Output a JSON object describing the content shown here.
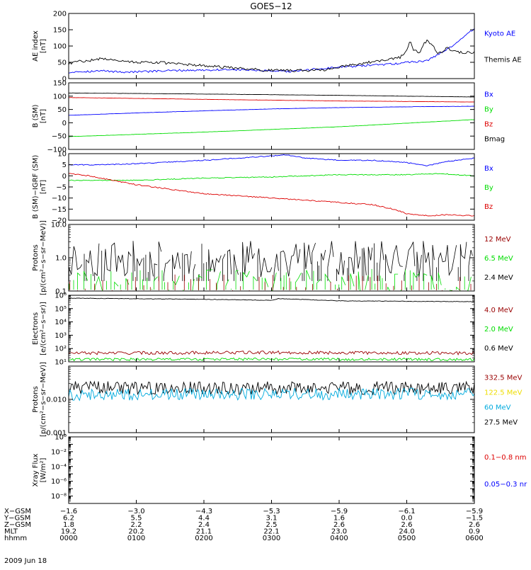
{
  "title": "GOES−12",
  "date_label": "2009 Jun 18",
  "colors": {
    "black": "#000000",
    "blue": "#0000ff",
    "red": "#dd0000",
    "green": "#00dd00",
    "darkred": "#990000",
    "yellow": "#eedd00",
    "cyan": "#00aadd"
  },
  "chart_data": [
    {
      "id": "ae",
      "type": "line",
      "ylabel_lines": [
        "AE index",
        "[nT]"
      ],
      "ylim": [
        0,
        200
      ],
      "log": false,
      "yticks": [
        0,
        50,
        100,
        150,
        200
      ],
      "legend": [
        {
          "name": "Kyoto AE",
          "color": "blue"
        },
        {
          "name": "Themis AE",
          "color": "black"
        }
      ],
      "series": [
        {
          "name": "Kyoto AE",
          "color": "blue",
          "noise": 3,
          "x": [
            0,
            0.1,
            0.3,
            0.5,
            0.8,
            1.2,
            1.6,
            2.0,
            2.4,
            2.8,
            3.0,
            3.3,
            3.6,
            4.0,
            4.4,
            4.8,
            5.0,
            5.3,
            5.6,
            5.8,
            6.0
          ],
          "y": [
            18,
            22,
            22,
            24,
            20,
            22,
            25,
            26,
            28,
            25,
            22,
            22,
            28,
            35,
            40,
            45,
            50,
            55,
            90,
            120,
            155
          ]
        },
        {
          "name": "Themis AE",
          "color": "black",
          "noise": 4,
          "x": [
            0,
            0.1,
            0.3,
            0.5,
            0.8,
            1.0,
            1.3,
            1.6,
            2.0,
            2.4,
            2.8,
            3.0,
            3.2,
            3.5,
            3.8,
            4.0,
            4.3,
            4.6,
            4.9,
            5.0,
            5.05,
            5.1,
            5.2,
            5.25,
            5.3,
            5.4,
            5.45,
            5.5,
            5.6,
            5.7,
            5.8,
            6.0
          ],
          "y": [
            45,
            52,
            55,
            62,
            55,
            50,
            50,
            45,
            40,
            33,
            28,
            25,
            25,
            25,
            27,
            35,
            45,
            55,
            65,
            85,
            115,
            90,
            80,
            110,
            115,
            100,
            75,
            80,
            95,
            85,
            80,
            80
          ]
        }
      ]
    },
    {
      "id": "bsm",
      "type": "line",
      "ylabel_lines": [
        "B (SM)",
        "[nT]"
      ],
      "ylim": [
        -100,
        150
      ],
      "log": false,
      "yticks": [
        -100,
        -50,
        0,
        50,
        100,
        150
      ],
      "legend": [
        {
          "name": "Bx",
          "color": "blue"
        },
        {
          "name": "By",
          "color": "green"
        },
        {
          "name": "Bz",
          "color": "red"
        },
        {
          "name": "Bmag",
          "color": "black"
        }
      ],
      "series": [
        {
          "name": "Bmag",
          "color": "black",
          "noise": 0.4,
          "x": [
            0,
            2,
            4,
            6
          ],
          "y": [
            112,
            108,
            103,
            97
          ]
        },
        {
          "name": "Bz",
          "color": "red",
          "noise": 0.4,
          "x": [
            0,
            2,
            4,
            6
          ],
          "y": [
            95,
            88,
            82,
            78
          ]
        },
        {
          "name": "Bx",
          "color": "blue",
          "noise": 0.4,
          "x": [
            0,
            1,
            2,
            3,
            4,
            5,
            6
          ],
          "y": [
            28,
            37,
            45,
            52,
            57,
            60,
            62
          ]
        },
        {
          "name": "By",
          "color": "green",
          "noise": 0.4,
          "x": [
            0,
            2,
            4,
            6
          ],
          "y": [
            -52,
            -35,
            -15,
            12
          ]
        }
      ]
    },
    {
      "id": "bdiff",
      "type": "line",
      "ylabel_lines": [
        "B (SM)−IGRF (SM)",
        "[nT]"
      ],
      "ylim": [
        -20,
        10
      ],
      "log": false,
      "yticks": [
        -20,
        -15,
        -10,
        -5,
        0,
        5,
        10
      ],
      "legend": [
        {
          "name": "Bx",
          "color": "blue"
        },
        {
          "name": "By",
          "color": "green"
        },
        {
          "name": "Bz",
          "color": "red"
        }
      ],
      "series": [
        {
          "name": "Bx",
          "color": "blue",
          "noise": 0.2,
          "x": [
            0,
            0.5,
            1.0,
            2.0,
            3.0,
            3.2,
            3.5,
            4.0,
            4.5,
            5.0,
            5.3,
            5.6,
            6.0
          ],
          "y": [
            5,
            5,
            5.5,
            7,
            9,
            9.5,
            8,
            7,
            7,
            6,
            4.5,
            6.5,
            8
          ]
        },
        {
          "name": "By",
          "color": "green",
          "noise": 0.2,
          "x": [
            0,
            1,
            2,
            3,
            4,
            5,
            5.5,
            6.0
          ],
          "y": [
            -2,
            -2,
            -1,
            -0.5,
            0.5,
            0.5,
            1,
            0
          ]
        },
        {
          "name": "Bz",
          "color": "red",
          "noise": 0.25,
          "x": [
            0,
            0.3,
            1.0,
            2.0,
            3.0,
            4.0,
            4.5,
            4.8,
            5.0,
            5.3,
            5.6,
            6.0
          ],
          "y": [
            1,
            0,
            -4,
            -8,
            -10,
            -12,
            -13,
            -15,
            -17,
            -18,
            -17.5,
            -18
          ]
        }
      ]
    },
    {
      "id": "protons_low",
      "type": "line",
      "ylabel_lines": [
        "Protons",
        "[p/(cm²−s−sr−MeV)]"
      ],
      "ylim": [
        0.1,
        10
      ],
      "log": true,
      "yticks": [
        0.1,
        1,
        10
      ],
      "ytick_labels": [
        "0.1",
        "1.0",
        "10.0"
      ],
      "legend": [
        {
          "name": "12 MeV",
          "color": "darkred"
        },
        {
          "name": "6.5 MeV",
          "color": "green"
        },
        {
          "name": "2.4 MeV",
          "color": "black"
        }
      ],
      "series": [
        {
          "name": "2.4 MeV",
          "color": "black",
          "spiky": true,
          "seed": 11,
          "n": 190,
          "base": 0.55,
          "spread": 0.55,
          "floor": 0.2
        },
        {
          "name": "6.5 MeV",
          "color": "green",
          "spiky": true,
          "seed": 23,
          "n": 110,
          "base": 0.15,
          "spread": 0.35,
          "floor": 0.11
        },
        {
          "name": "12 MeV",
          "color": "darkred",
          "spiky": true,
          "seed": 37,
          "n": 50,
          "base": 0.12,
          "spread": 0.3,
          "floor": 0.105
        }
      ]
    },
    {
      "id": "electrons",
      "type": "line",
      "ylabel_lines": [
        "Electrons",
        "[e/(cm²−s−sr)]"
      ],
      "ylim": [
        10,
        1000000
      ],
      "log": true,
      "yticks": [
        10,
        100,
        1000,
        10000,
        100000,
        1000000
      ],
      "ytick_labels": [
        "10¹",
        "10²",
        "10³",
        "10⁴",
        "10⁵",
        "10⁶"
      ],
      "legend": [
        {
          "name": "4.0 MeV",
          "color": "darkred"
        },
        {
          "name": "2.0 MeV",
          "color": "green"
        },
        {
          "name": "0.6 MeV",
          "color": "black"
        }
      ],
      "series": [
        {
          "name": "0.6 MeV",
          "color": "black",
          "noise": 0.02,
          "x": [
            0,
            2,
            3,
            3.1,
            4,
            6
          ],
          "y": [
            600000,
            500000,
            420000,
            550000,
            380000,
            330000
          ]
        },
        {
          "name": "4.0 MeV",
          "color": "darkred",
          "noise": 0.12,
          "x": [
            0,
            3,
            6
          ],
          "y": [
            45,
            50,
            45
          ]
        },
        {
          "name": "2.0 MeV",
          "color": "green",
          "noise": 0.1,
          "x": [
            0,
            3,
            6
          ],
          "y": [
            15,
            16,
            15
          ]
        }
      ]
    },
    {
      "id": "protons_high",
      "type": "line",
      "ylabel_lines": [
        "Protons",
        "[p/(cm²−s−sr−MeV)]"
      ],
      "ylim": [
        0.001,
        0.1
      ],
      "log": true,
      "yticks": [
        0.001,
        0.01,
        0.1
      ],
      "ytick_labels": [
        "0.001",
        "0.010",
        ""
      ],
      "legend": [
        {
          "name": "332.5 MeV",
          "color": "darkred"
        },
        {
          "name": "122.5 MeV",
          "color": "yellow"
        },
        {
          "name": "60 MeV",
          "color": "cyan"
        },
        {
          "name": "27.5 MeV",
          "color": "black"
        }
      ],
      "series": [
        {
          "name": "27.5 MeV",
          "color": "black",
          "noise": 0.2,
          "x": [
            0,
            6
          ],
          "y": [
            0.022,
            0.022
          ]
        },
        {
          "name": "60 MeV",
          "color": "cyan",
          "noise": 0.18,
          "x": [
            0,
            6
          ],
          "y": [
            0.014,
            0.015
          ]
        }
      ]
    },
    {
      "id": "xray",
      "type": "line",
      "ylabel_lines": [
        "Xray Flux",
        "[W/m²]"
      ],
      "ylim": [
        1e-09,
        1
      ],
      "log": true,
      "yticks": [
        1e-09,
        1e-08,
        1e-07,
        1e-06,
        1e-05,
        0.0001,
        0.001,
        0.01,
        0.1,
        1
      ],
      "ytick_labels": [
        "",
        "10⁻⁸",
        "",
        "10⁻⁶",
        "",
        "10⁻⁴",
        "",
        "10⁻²",
        "",
        "10⁰"
      ],
      "legend": [
        {
          "name": "0.1−0.8 nm",
          "color": "red"
        },
        {
          "name": "0.05−0.3 nr",
          "color": "blue"
        }
      ],
      "series": []
    }
  ],
  "x_axis": {
    "ticks": [
      0,
      1,
      2,
      3,
      4,
      5,
      6
    ],
    "rows": [
      {
        "label": "X−GSM",
        "values": [
          "−1.6",
          "−3.0",
          "−4.3",
          "−5.3",
          "−5.9",
          "−6.1",
          "−5.9"
        ]
      },
      {
        "label": "Y−GSM",
        "values": [
          "6.2",
          "5.5",
          "4.4",
          "3.1",
          "1.6",
          "0.0",
          "−1.5"
        ]
      },
      {
        "label": "Z−GSM",
        "values": [
          "1.8",
          "2.2",
          "2.4",
          "2.5",
          "2.6",
          "2.6",
          "2.6"
        ]
      },
      {
        "label": "MLT",
        "values": [
          "19.2",
          "20.2",
          "21.1",
          "22.1",
          "23.0",
          "24.0",
          "0.9"
        ]
      },
      {
        "label": "hhmm",
        "values": [
          "0000",
          "0100",
          "0200",
          "0300",
          "0400",
          "0500",
          "0600"
        ]
      }
    ]
  }
}
